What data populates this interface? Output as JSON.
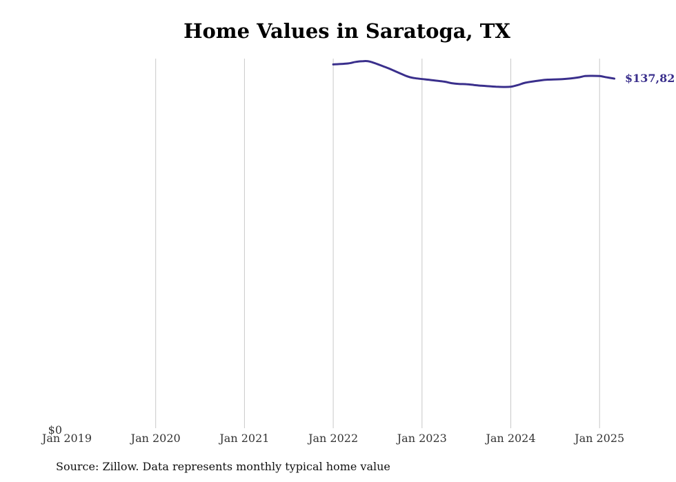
{
  "chart_data": {
    "type": "line",
    "title": "Home Values in Saratoga, TX",
    "source": "Source: Zillow. Data represents monthly typical home value",
    "xlabel": "",
    "ylabel": "",
    "x_ticks": [
      "Jan 2019",
      "Jan 2020",
      "Jan 2021",
      "Jan 2022",
      "Jan 2023",
      "Jan 2024",
      "Jan 2025"
    ],
    "xlim": [
      "2019-01",
      "2025-04"
    ],
    "y_ticks": [
      "$0"
    ],
    "ylim": [
      0,
      146000
    ],
    "grid": "vertical",
    "end_label": "$137,82",
    "line_color": "#3a2f8c",
    "series": [
      {
        "x": [
          "2022-01",
          "2022-03",
          "2022-04",
          "2022-05",
          "2022-06",
          "2022-08",
          "2022-09",
          "2022-11",
          "2022-12",
          "2023-02",
          "2023-04",
          "2023-05",
          "2023-06",
          "2023-07",
          "2023-08",
          "2023-09",
          "2023-10",
          "2023-11",
          "2023-12",
          "2024-01",
          "2024-02",
          "2024-03",
          "2024-05",
          "2024-06",
          "2024-08",
          "2024-10",
          "2024-11",
          "2024-12",
          "2025-01",
          "2025-02",
          "2025-03"
        ],
        "values": [
          143700,
          144100,
          144700,
          145000,
          144800,
          142700,
          141500,
          139000,
          138300,
          137600,
          136900,
          136300,
          136000,
          135900,
          135600,
          135300,
          135100,
          134900,
          134800,
          134900,
          135600,
          136500,
          137400,
          137700,
          137900,
          138500,
          139100,
          139200,
          139100,
          138600,
          138100
        ]
      }
    ]
  }
}
